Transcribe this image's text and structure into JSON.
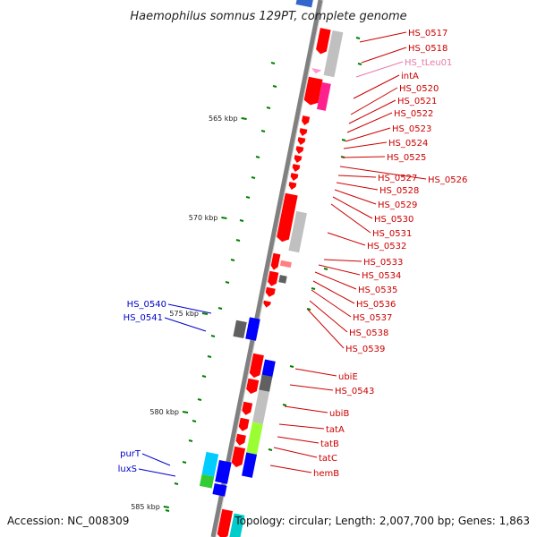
{
  "title": "Haemophilus somnus 129PT, complete genome",
  "footer": {
    "accession": "Accession: NC_008309",
    "summary": "Topology: circular; Length: 2,007,700 bp; Genes: 1,863"
  },
  "colors": {
    "backbone": "#808080",
    "forward_gene": "#ff0000",
    "reverse_gene": "#0000ff",
    "trna": "#ff99cc",
    "gc_tick": "#008000"
  },
  "kbp_marks": [
    {
      "value": 565,
      "label": "565 kbp"
    },
    {
      "value": 570,
      "label": "570 kbp"
    },
    {
      "value": 575,
      "label": "575 kbp"
    },
    {
      "value": 580,
      "label": "580 kbp"
    },
    {
      "value": 585,
      "label": "585 kbp"
    }
  ],
  "right_labels": [
    {
      "name": "HS_0517",
      "color": "#cc0000"
    },
    {
      "name": "HS_0518",
      "color": "#cc0000"
    },
    {
      "name": "HS_tLeu01",
      "color": "#e87aa8"
    },
    {
      "name": "intA",
      "color": "#cc0000"
    },
    {
      "name": "HS_0520",
      "color": "#cc0000"
    },
    {
      "name": "HS_0521",
      "color": "#cc0000"
    },
    {
      "name": "HS_0522",
      "color": "#cc0000"
    },
    {
      "name": "HS_0523",
      "color": "#cc0000"
    },
    {
      "name": "HS_0524",
      "color": "#cc0000"
    },
    {
      "name": "HS_0525",
      "color": "#cc0000"
    },
    {
      "name": "HS_0526",
      "color": "#cc0000"
    },
    {
      "name": "HS_0527",
      "color": "#cc0000"
    },
    {
      "name": "HS_0528",
      "color": "#cc0000"
    },
    {
      "name": "HS_0529",
      "color": "#cc0000"
    },
    {
      "name": "HS_0530",
      "color": "#cc0000"
    },
    {
      "name": "HS_0531",
      "color": "#cc0000"
    },
    {
      "name": "HS_0532",
      "color": "#cc0000"
    },
    {
      "name": "HS_0533",
      "color": "#cc0000"
    },
    {
      "name": "HS_0534",
      "color": "#cc0000"
    },
    {
      "name": "HS_0535",
      "color": "#cc0000"
    },
    {
      "name": "HS_0536",
      "color": "#cc0000"
    },
    {
      "name": "HS_0537",
      "color": "#cc0000"
    },
    {
      "name": "HS_0538",
      "color": "#cc0000"
    },
    {
      "name": "HS_0539",
      "color": "#cc0000"
    },
    {
      "name": "ubiE",
      "color": "#cc0000"
    },
    {
      "name": "HS_0543",
      "color": "#cc0000"
    },
    {
      "name": "ubiB",
      "color": "#cc0000"
    },
    {
      "name": "tatA",
      "color": "#cc0000"
    },
    {
      "name": "tatB",
      "color": "#cc0000"
    },
    {
      "name": "tatC",
      "color": "#cc0000"
    },
    {
      "name": "hemB",
      "color": "#cc0000"
    }
  ],
  "left_labels": [
    {
      "name": "HS_0540",
      "color": "#0000cc"
    },
    {
      "name": "HS_0541",
      "color": "#0000cc"
    },
    {
      "name": "purT",
      "color": "#0000cc"
    },
    {
      "name": "luxS",
      "color": "#0000cc"
    }
  ]
}
